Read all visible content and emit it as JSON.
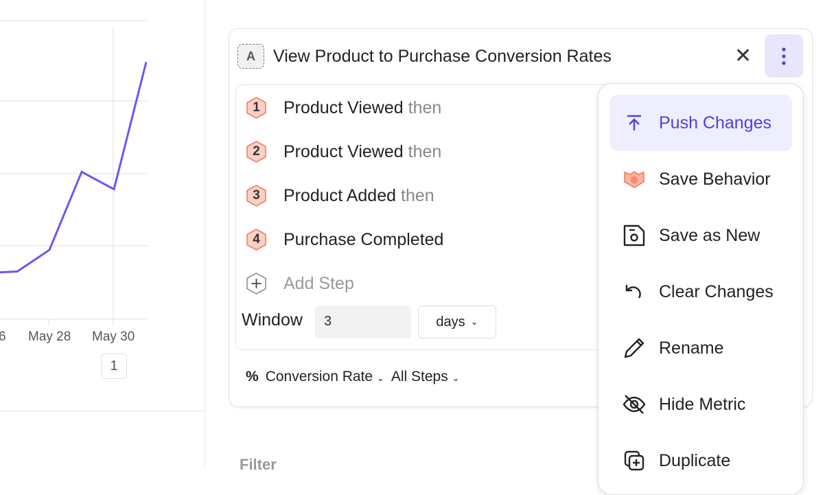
{
  "chart_data": {
    "type": "line",
    "x_tick_labels": [
      "6",
      "May 28",
      "May 30"
    ],
    "series": [
      {
        "values": [
          1.6,
          1.65,
          2.4,
          5.1,
          4.5,
          8.9
        ]
      }
    ],
    "color": "#6c55f5",
    "grid": true
  },
  "chart_pager": "1",
  "metric": {
    "badge": "A",
    "title": "View Product to Purchase Conversion Rates",
    "steps": [
      {
        "num": "1",
        "event": "Product Viewed",
        "suffix": "then"
      },
      {
        "num": "2",
        "event": "Product Viewed",
        "suffix": "then"
      },
      {
        "num": "3",
        "event": "Product Added",
        "suffix": "then"
      },
      {
        "num": "4",
        "event": "Purchase Completed",
        "suffix": ""
      }
    ],
    "add_step": "Add Step",
    "window_label": "Window",
    "window_value": "3",
    "window_unit": "days",
    "measure_symbol": "%",
    "measure": "Conversion Rate",
    "steps_scope": "All Steps"
  },
  "filter_label": "Filter",
  "menu": [
    {
      "label": "Push Changes",
      "icon": "push-icon"
    },
    {
      "label": "Save Behavior",
      "icon": "behavior-icon"
    },
    {
      "label": "Save as New",
      "icon": "save-new-icon"
    },
    {
      "label": "Clear Changes",
      "icon": "undo-icon"
    },
    {
      "label": "Rename",
      "icon": "pencil-icon"
    },
    {
      "label": "Hide Metric",
      "icon": "eye-off-icon"
    },
    {
      "label": "Duplicate",
      "icon": "duplicate-icon"
    }
  ],
  "colors": {
    "accent": "#4f3fe0",
    "step_badge": "#fbd0c4",
    "line": "#6c55f5"
  }
}
